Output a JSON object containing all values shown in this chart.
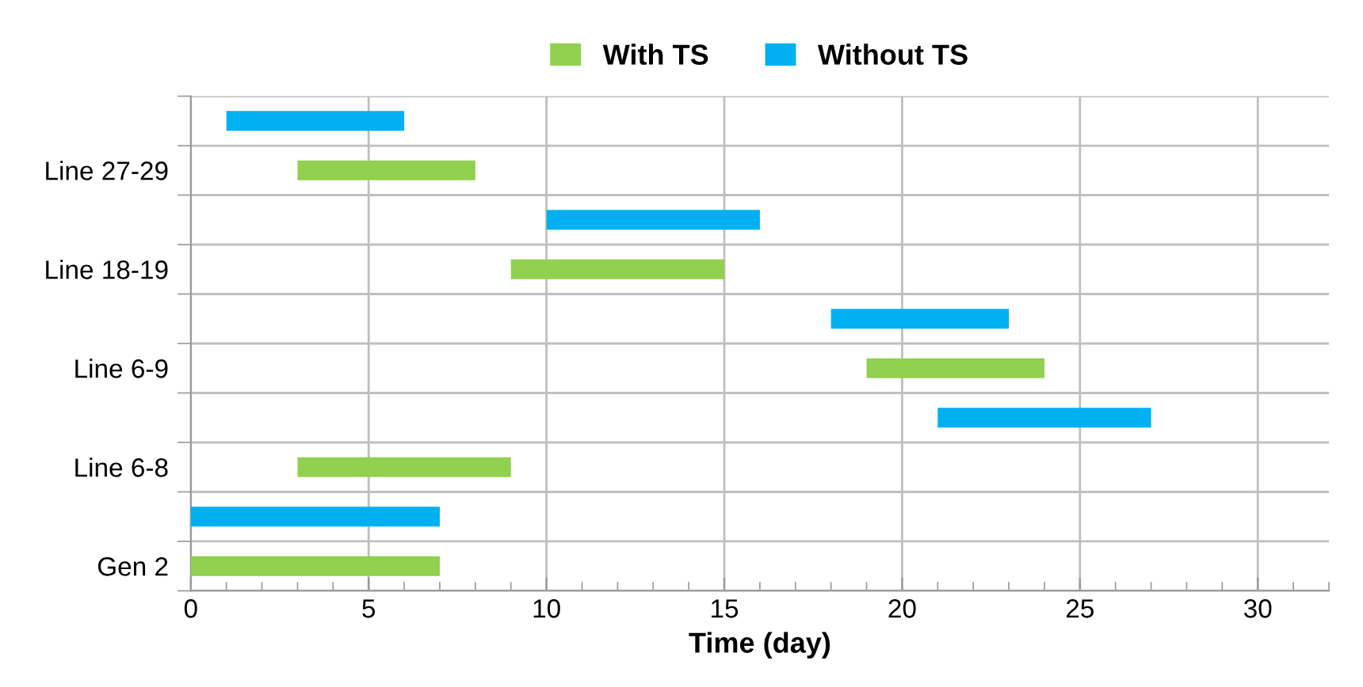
{
  "chart_data": {
    "type": "bar",
    "orientation": "horizontal",
    "xlabel": "Time (day)",
    "categories": [
      "Line 27-29",
      "Line 18-19",
      "Line 6-9",
      "Line 6-8",
      "Gen 2"
    ],
    "series": [
      {
        "name": "With TS",
        "color": "#92d050",
        "base": [
          3,
          9,
          19,
          3,
          0
        ],
        "values": [
          5,
          6,
          5,
          6,
          7
        ]
      },
      {
        "name": "Without TS",
        "color": "#00b0f0",
        "base": [
          1,
          10,
          18,
          21,
          0
        ],
        "values": [
          5,
          6,
          5,
          6,
          7
        ]
      }
    ],
    "xlim": [
      0,
      32
    ],
    "xticks": [
      0,
      5,
      10,
      15,
      20,
      25,
      30
    ],
    "grid": true,
    "legend": "top"
  }
}
